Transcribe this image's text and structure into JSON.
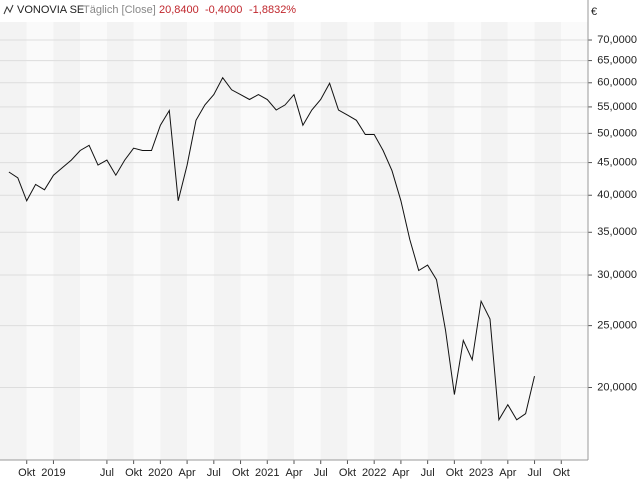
{
  "chart_data": {
    "type": "line",
    "title": "VONOVIA SE",
    "subtitle": "Täglich [Close]",
    "annotations": [
      "20,8400",
      "-0,4000",
      "-1,8832%"
    ],
    "y_unit": "€",
    "log_scale": true,
    "grid": true,
    "x": [
      "2018-08",
      "2018-09",
      "2018-10",
      "2018-11",
      "2018-12",
      "2019-01",
      "2019-02",
      "2019-03",
      "2019-04",
      "2019-05",
      "2019-06",
      "2019-07",
      "2019-08",
      "2019-09",
      "2019-10",
      "2019-11",
      "2019-12",
      "2020-01",
      "2020-02",
      "2020-03",
      "2020-04",
      "2020-05",
      "2020-06",
      "2020-07",
      "2020-08",
      "2020-09",
      "2020-10",
      "2020-11",
      "2020-12",
      "2021-01",
      "2021-02",
      "2021-03",
      "2021-04",
      "2021-05",
      "2021-06",
      "2021-07",
      "2021-08",
      "2021-09",
      "2021-10",
      "2021-11",
      "2021-12",
      "2022-01",
      "2022-02",
      "2022-03",
      "2022-04",
      "2022-05",
      "2022-06",
      "2022-07",
      "2022-08",
      "2022-09",
      "2022-10",
      "2022-11",
      "2022-12",
      "2023-01",
      "2023-02",
      "2023-03",
      "2023-04",
      "2023-05",
      "2023-06",
      "2023-07"
    ],
    "series": [
      {
        "name": "VONOVIA SE",
        "color": "#111111",
        "values": [
          43.5,
          42.6,
          39.2,
          41.6,
          40.8,
          43.0,
          44.2,
          45.4,
          47.0,
          47.9,
          44.6,
          45.4,
          43.0,
          45.4,
          47.4,
          47.0,
          47.0,
          51.5,
          54.3,
          39.2,
          44.6,
          52.4,
          55.4,
          57.5,
          61.1,
          58.5,
          57.5,
          56.5,
          57.5,
          56.5,
          54.4,
          55.4,
          57.5,
          51.5,
          54.4,
          56.5,
          59.9,
          54.4,
          53.4,
          52.4,
          49.8,
          49.8,
          47.0,
          43.7,
          39.2,
          34.1,
          30.5,
          31.1,
          29.5,
          24.6,
          19.5,
          23.7,
          22.1,
          27.3,
          25.6,
          17.8,
          18.8,
          17.8,
          18.2,
          20.84
        ]
      }
    ],
    "xlim": [
      "2018-07",
      "2024-01"
    ],
    "xticks": [
      {
        "value": "2018-10",
        "label": "Okt"
      },
      {
        "value": "2019-01",
        "label": "2019"
      },
      {
        "value": "2019-07",
        "label": "Jul"
      },
      {
        "value": "2019-10",
        "label": "Okt"
      },
      {
        "value": "2020-01",
        "label": "2020"
      },
      {
        "value": "2020-04",
        "label": "Apr"
      },
      {
        "value": "2020-07",
        "label": "Jul"
      },
      {
        "value": "2020-10",
        "label": "Okt"
      },
      {
        "value": "2021-01",
        "label": "2021"
      },
      {
        "value": "2021-04",
        "label": "Apr"
      },
      {
        "value": "2021-07",
        "label": "Jul"
      },
      {
        "value": "2021-10",
        "label": "Okt"
      },
      {
        "value": "2022-01",
        "label": "2022"
      },
      {
        "value": "2022-04",
        "label": "Apr"
      },
      {
        "value": "2022-07",
        "label": "Jul"
      },
      {
        "value": "2022-10",
        "label": "Okt"
      },
      {
        "value": "2023-01",
        "label": "2023"
      },
      {
        "value": "2023-04",
        "label": "Apr"
      },
      {
        "value": "2023-07",
        "label": "Jul"
      },
      {
        "value": "2023-10",
        "label": "Okt"
      }
    ],
    "ylim": [
      15.4,
      74.7
    ],
    "yticks": [
      {
        "value": 20,
        "label": "20,0000"
      },
      {
        "value": 25,
        "label": "25,0000"
      },
      {
        "value": 30,
        "label": "30,0000"
      },
      {
        "value": 35,
        "label": "35,0000"
      },
      {
        "value": 40,
        "label": "40,0000"
      },
      {
        "value": 45,
        "label": "45,0000"
      },
      {
        "value": 50,
        "label": "50,0000"
      },
      {
        "value": 55,
        "label": "55,0000"
      },
      {
        "value": 60,
        "label": "60,0000"
      },
      {
        "value": 65,
        "label": "65,0000"
      },
      {
        "value": 70,
        "label": "70,0000"
      }
    ]
  }
}
